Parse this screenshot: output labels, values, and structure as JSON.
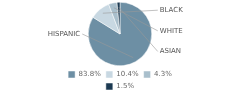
{
  "chart_data": {
    "type": "pie",
    "categories": [
      "HISPANIC",
      "BLACK",
      "WHITE",
      "ASIAN"
    ],
    "values": [
      83.8,
      10.4,
      4.3,
      1.5
    ],
    "value_labels": [
      "83.8%",
      "10.4%",
      "4.3%",
      "1.5%"
    ],
    "colors": [
      "#6d8fa4",
      "#c8d8e2",
      "#a9bfcc",
      "#1c3a52"
    ],
    "legend": "bottom"
  }
}
